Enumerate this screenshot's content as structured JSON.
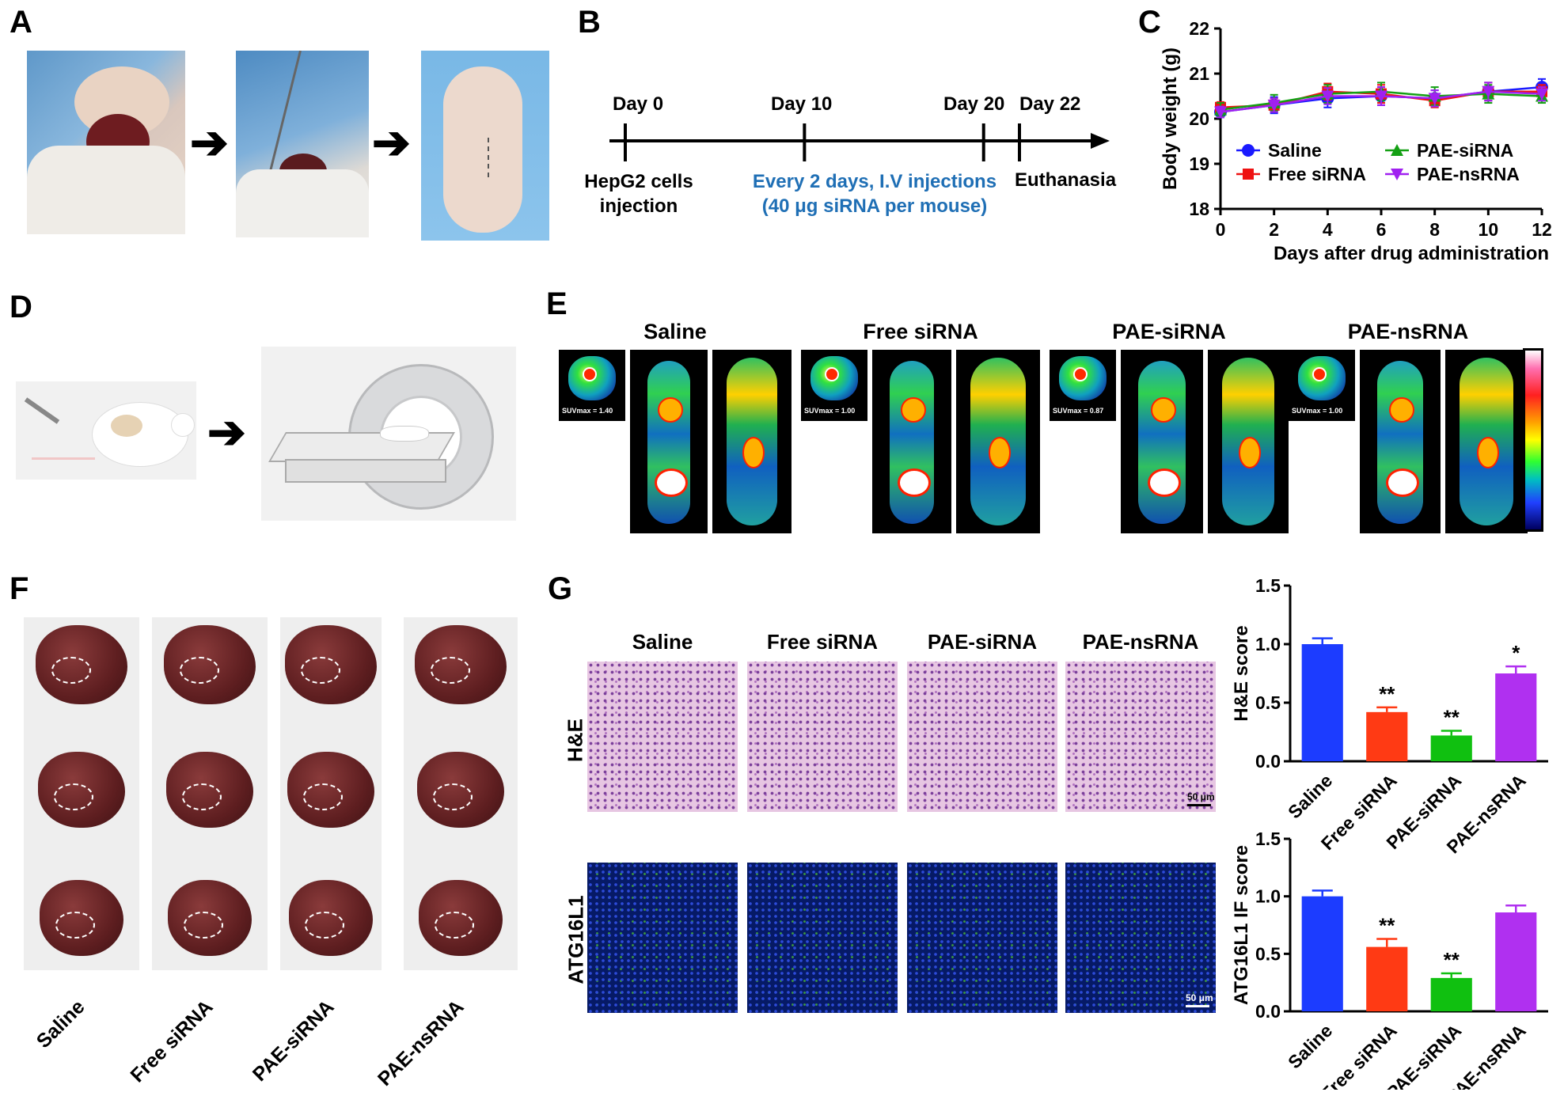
{
  "panels": {
    "A": "A",
    "B": "B",
    "C": "C",
    "D": "D",
    "E": "E",
    "F": "F",
    "G": "G"
  },
  "timeline": {
    "days": [
      {
        "label": "Day 0",
        "day": 0
      },
      {
        "label": "Day 10",
        "day": 10
      },
      {
        "label": "Day 20",
        "day": 20
      },
      {
        "label": "Day 22",
        "day": 22
      }
    ],
    "hepg2_line1": "HepG2 cells",
    "hepg2_line2": "injection",
    "treatment_line1": "Every 2 days, I.V injections",
    "treatment_line2": "(40 μg siRNA per mouse)",
    "euthanasia": "Euthanasia",
    "treatment_color": "#1f6fb5"
  },
  "pet": {
    "groups": [
      {
        "label": "Saline",
        "suv": "SUVmax = 1.40"
      },
      {
        "label": "Free siRNA",
        "suv": "SUVmax = 1.00"
      },
      {
        "label": "PAE-siRNA",
        "suv": "SUVmax = 0.87"
      },
      {
        "label": "PAE-nsRNA",
        "suv": "SUVmax = 1.00"
      }
    ]
  },
  "livers": {
    "groups": [
      "Saline",
      "Free siRNA",
      "PAE-siRNA",
      "PAE-nsRNA"
    ]
  },
  "histology": {
    "columns": [
      "Saline",
      "Free siRNA",
      "PAE-siRNA",
      "PAE-nsRNA"
    ],
    "rows": [
      "H&E",
      "ATG16L1"
    ],
    "scalebar": "50 μm"
  },
  "chart_data": [
    {
      "type": "line",
      "xlabel": "Days after drug administration",
      "ylabel": "Body weight (g)",
      "xlim": [
        0,
        12
      ],
      "ylim": [
        18,
        22
      ],
      "xticks": [
        "0",
        "2",
        "4",
        "6",
        "8",
        "10",
        "12"
      ],
      "yticks": [
        "18",
        "19",
        "20",
        "21",
        "22"
      ],
      "x": [
        0,
        2,
        4,
        6,
        8,
        10,
        12
      ],
      "series": [
        {
          "name": "Saline",
          "color": "#1a1aff",
          "marker": "circle",
          "values": [
            20.15,
            20.3,
            20.45,
            20.5,
            20.45,
            20.6,
            20.7
          ],
          "error": [
            0.12,
            0.18,
            0.2,
            0.2,
            0.18,
            0.2,
            0.18
          ]
        },
        {
          "name": "Free siRNA",
          "color": "#ee1111",
          "marker": "square",
          "values": [
            20.25,
            20.3,
            20.6,
            20.55,
            20.4,
            20.6,
            20.6
          ],
          "error": [
            0.12,
            0.15,
            0.18,
            0.2,
            0.15,
            0.2,
            0.15
          ]
        },
        {
          "name": "PAE-siRNA",
          "color": "#14a014",
          "marker": "triangle-up",
          "values": [
            20.2,
            20.35,
            20.55,
            20.6,
            20.5,
            20.55,
            20.5
          ],
          "error": [
            0.15,
            0.18,
            0.2,
            0.2,
            0.2,
            0.2,
            0.15
          ]
        },
        {
          "name": "PAE-nsRNA",
          "color": "#a020f0",
          "marker": "triangle-down",
          "values": [
            20.15,
            20.3,
            20.5,
            20.5,
            20.45,
            20.6,
            20.55
          ],
          "error": [
            0.12,
            0.15,
            0.18,
            0.2,
            0.18,
            0.2,
            0.15
          ]
        }
      ],
      "legend": "inside-bottom"
    },
    {
      "type": "bar",
      "ylabel": "H&E score",
      "ylim": [
        0,
        1.5
      ],
      "yticks": [
        "0.0",
        "0.5",
        "1.0",
        "1.5"
      ],
      "categories": [
        "Saline",
        "Free siRNA",
        "PAE-siRNA",
        "PAE-nsRNA"
      ],
      "values": [
        1.0,
        0.42,
        0.22,
        0.75
      ],
      "error": [
        0.05,
        0.04,
        0.04,
        0.06
      ],
      "colors": [
        "#1c3cff",
        "#ff3a14",
        "#10c010",
        "#b030f0"
      ],
      "significance": [
        "",
        "**",
        "**",
        "*"
      ]
    },
    {
      "type": "bar",
      "ylabel": "ATG16L1 IF  score",
      "ylim": [
        0,
        1.5
      ],
      "yticks": [
        "0.0",
        "0.5",
        "1.0",
        "1.5"
      ],
      "categories": [
        "Saline",
        "Free siRNA",
        "PAE-siRNA",
        "PAE-nsRNA"
      ],
      "values": [
        1.0,
        0.56,
        0.29,
        0.86
      ],
      "error": [
        0.05,
        0.07,
        0.04,
        0.06
      ],
      "colors": [
        "#1c3cff",
        "#ff3a14",
        "#10c010",
        "#b030f0"
      ],
      "significance": [
        "",
        "**",
        "**",
        ""
      ]
    }
  ]
}
